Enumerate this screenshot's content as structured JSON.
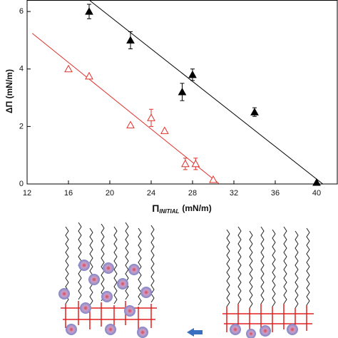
{
  "chart_data": {
    "type": "scatter",
    "x_label": {
      "symbol": "Π",
      "subscript": "INITIAL",
      "unit": "(mN/m)"
    },
    "y_label": "ΔΠ (mN/m)",
    "xlim": [
      12,
      42
    ],
    "ylim": [
      0,
      6.4
    ],
    "xticks": [
      12,
      16,
      20,
      24,
      28,
      32,
      36,
      40
    ],
    "yticks": [
      0,
      2,
      4,
      6
    ],
    "series": [
      {
        "color": "#000000",
        "marker": "filled-triangle",
        "x": [
          18,
          22,
          27,
          28,
          34,
          40
        ],
        "values": [
          6.0,
          5.0,
          3.2,
          3.8,
          2.5,
          0.05
        ],
        "errors": [
          0.25,
          0.3,
          0.3,
          0.2,
          0.15,
          null
        ]
      },
      {
        "color": "#e0302a",
        "marker": "open-triangle",
        "x": [
          16,
          18,
          22,
          24,
          25.3,
          27.3,
          28.3,
          30
        ],
        "values": [
          4.0,
          3.75,
          2.05,
          2.3,
          1.85,
          0.7,
          0.7,
          0.15
        ],
        "errors": [
          null,
          null,
          null,
          0.3,
          null,
          0.2,
          0.2,
          null
        ]
      }
    ],
    "fits": [
      {
        "color": "#000000",
        "x": [
          18,
          40.6
        ],
        "values": [
          6.4,
          0
        ]
      },
      {
        "color": "#e0302a",
        "x": [
          12.5,
          30.6
        ],
        "values": [
          5.24,
          0
        ]
      }
    ]
  }
}
